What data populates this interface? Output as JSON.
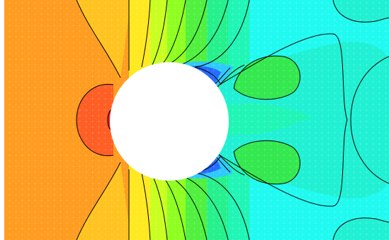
{
  "image": {
    "description_shown": false,
    "palette": {
      "orange": "#ff9a1a",
      "red_orange": "#ff5a1e",
      "red": "#e8201e",
      "yellow_orange": "#ffc21a",
      "yellow": "#ffe81a",
      "lime": "#c8ff1a",
      "green_yellow": "#8cff1a",
      "green": "#4cf03a",
      "bright_green": "#2ee84a",
      "sea_green": "#20f08a",
      "aqua_green": "#1af5b4",
      "turquoise": "#1af0d2",
      "cyan": "#1afaf0",
      "light_blue": "#28c8ff",
      "blue": "#2066ff",
      "deep_blue": "#1428d8",
      "contour_line": "#000000",
      "mesh_line": "#ffffff",
      "cylinder": "#ffffff"
    }
  }
}
